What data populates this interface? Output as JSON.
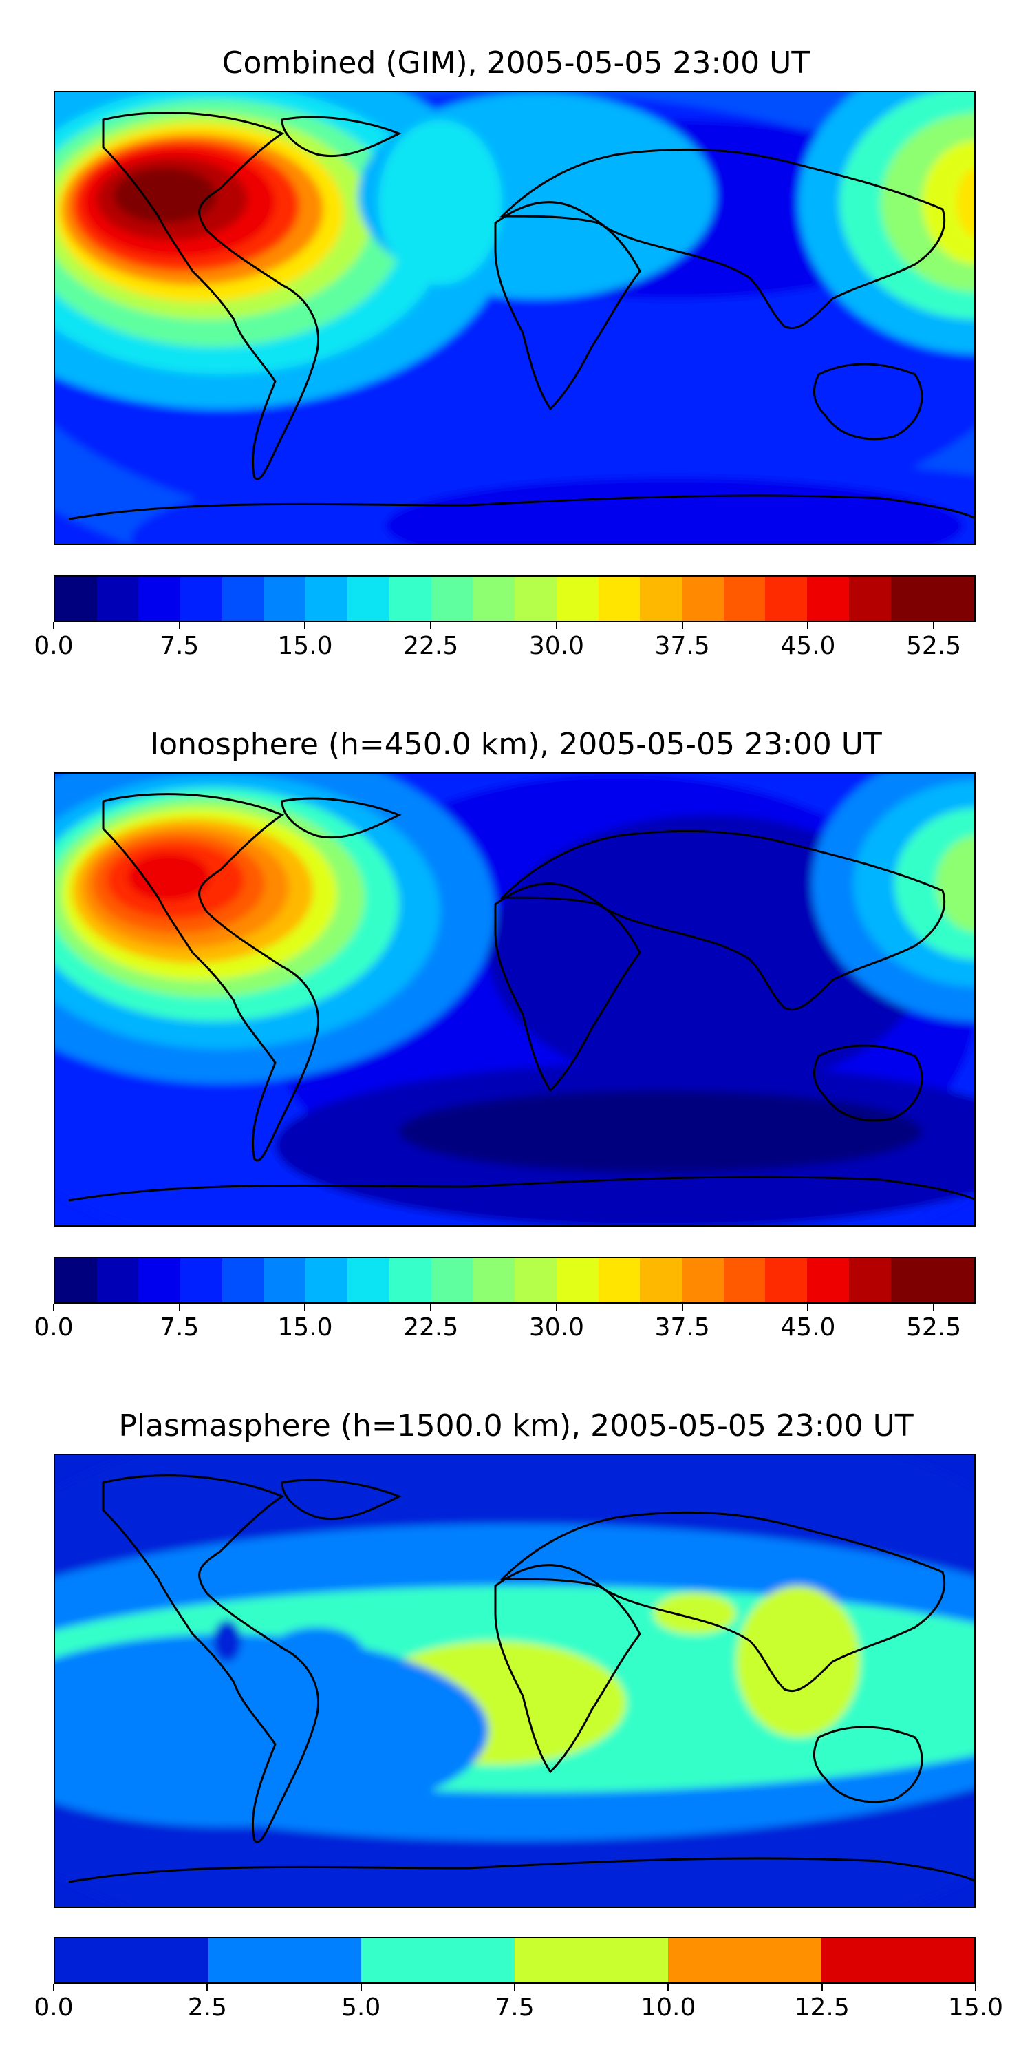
{
  "chart_data": [
    {
      "type": "heatmap",
      "title": "Combined (GIM), 2005-05-05 23:00 UT",
      "colorbar": {
        "levels": [
          0.0,
          2.5,
          5.0,
          7.5,
          10.0,
          12.5,
          15.0,
          17.5,
          20.0,
          22.5,
          25.0,
          27.5,
          30.0,
          32.5,
          35.0,
          37.5,
          40.0,
          42.5,
          45.0,
          47.5,
          50.0,
          52.5,
          55.0
        ],
        "tick_labels": [
          "0.0",
          "7.5",
          "15.0",
          "22.5",
          "30.0",
          "37.5",
          "45.0",
          "52.5"
        ],
        "tick_values": [
          0.0,
          7.5,
          15.0,
          22.5,
          30.0,
          37.5,
          45.0,
          52.5
        ],
        "colormap": "jet"
      },
      "features": [
        {
          "region": "Eastern Pacific west of South America",
          "approx_max": 55.0
        },
        {
          "region": "Western Pacific near Philippines",
          "approx_max": 37.5
        },
        {
          "region": "South Atlantic / Indian Ocean",
          "approx_min": 5.0
        }
      ]
    },
    {
      "type": "heatmap",
      "title": "Ionosphere  (h=450.0 km), 2005-05-05 23:00 UT",
      "colorbar": {
        "levels": [
          0.0,
          2.5,
          5.0,
          7.5,
          10.0,
          12.5,
          15.0,
          17.5,
          20.0,
          22.5,
          25.0,
          27.5,
          30.0,
          32.5,
          35.0,
          37.5,
          40.0,
          42.5,
          45.0,
          47.5,
          50.0,
          52.5,
          55.0
        ],
        "tick_labels": [
          "0.0",
          "7.5",
          "15.0",
          "22.5",
          "30.0",
          "37.5",
          "45.0",
          "52.5"
        ],
        "tick_values": [
          0.0,
          7.5,
          15.0,
          22.5,
          30.0,
          37.5,
          45.0,
          52.5
        ],
        "colormap": "jet"
      },
      "features": [
        {
          "region": "Eastern Pacific west of South America",
          "approx_max": 47.5
        },
        {
          "region": "Western Pacific near Philippines",
          "approx_max": 27.5
        },
        {
          "region": "Africa / Indian Ocean",
          "approx_min": 2.5
        }
      ]
    },
    {
      "type": "heatmap",
      "title": "Plasmasphere (h=1500.0 km), 2005-05-05 23:00 UT",
      "colorbar": {
        "levels": [
          0.0,
          2.5,
          5.0,
          7.5,
          10.0,
          12.5,
          15.0
        ],
        "tick_labels": [
          "0.0",
          "2.5",
          "5.0",
          "7.5",
          "10.0",
          "12.5",
          "15.0"
        ],
        "tick_values": [
          0.0,
          2.5,
          5.0,
          7.5,
          10.0,
          12.5,
          15.0
        ],
        "colormap": "jet"
      },
      "features": [
        {
          "region": "Southern Africa / Indian Ocean",
          "approx_max": 10.0
        },
        {
          "region": "Southeast Asia",
          "approx_max": 10.0
        },
        {
          "region": "Polar regions",
          "approx_min": 0.0
        }
      ]
    }
  ],
  "jet22": [
    "#00007f",
    "#0000b6",
    "#0000ee",
    "#0020ff",
    "#0050ff",
    "#0084ff",
    "#00b4ff",
    "#0ce4f4",
    "#36ffc9",
    "#5fffa0",
    "#8dff71",
    "#b5ff4a",
    "#e1ff17",
    "#ffe500",
    "#ffb800",
    "#ff8900",
    "#ff5a00",
    "#ff2b00",
    "#ee0000",
    "#b50000",
    "#7f0000",
    "#7f0000"
  ],
  "jet6": [
    "#0020d8",
    "#0080ff",
    "#36ffc9",
    "#c9ff2f",
    "#ff9100",
    "#dd0000"
  ]
}
